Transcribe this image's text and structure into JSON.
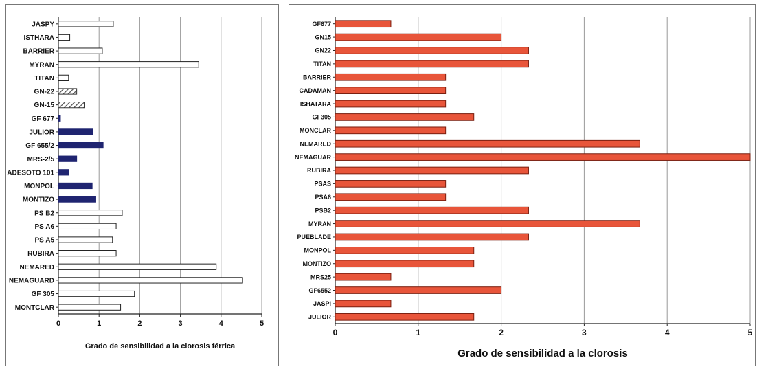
{
  "charts": [
    {
      "id": "left",
      "chart_data": {
        "type": "bar",
        "orientation": "horizontal",
        "categories": [
          "JASPY",
          "ISTHARA",
          "BARRIER",
          "MYRAN",
          "TITAN",
          "GN-22",
          "GN-15",
          "GF 677",
          "JULIOR",
          "GF 655/2",
          "MRS-2/5",
          "ADESOTO 101",
          "MONPOL",
          "MONTIZO",
          "PS B2",
          "PS A6",
          "PS A5",
          "RUBIRA",
          "NEMARED",
          "NEMAGUARD",
          "GF 305",
          "MONTCLAR"
        ],
        "values": [
          1.35,
          0.28,
          1.08,
          3.45,
          0.25,
          0.45,
          0.65,
          0.05,
          0.85,
          1.1,
          0.45,
          0.25,
          0.83,
          0.92,
          1.57,
          1.42,
          1.33,
          1.42,
          3.88,
          4.53,
          1.87,
          1.53
        ],
        "bar_styles": [
          "white",
          "white",
          "white",
          "white",
          "white",
          "hatched",
          "hatched",
          "dark",
          "dark",
          "dark",
          "dark",
          "dark",
          "dark",
          "dark",
          "white",
          "white",
          "white",
          "white",
          "white",
          "white",
          "white",
          "white"
        ],
        "xlabel": "Grado de sensibilidad a la clorosis férrica",
        "xlim": [
          0,
          5
        ],
        "xticks": [
          "0",
          "1",
          "2",
          "3",
          "4",
          "5"
        ],
        "grid": "vertical"
      },
      "colors": {
        "dark": "#1f2470",
        "white": "#ffffff",
        "hatched": "#555555",
        "grid": "#9a9a9a"
      }
    },
    {
      "id": "right",
      "chart_data": {
        "type": "bar",
        "orientation": "horizontal",
        "categories": [
          "GF677",
          "GN15",
          "GN22",
          "TITAN",
          "BARRIER",
          "CADAMAN",
          "ISHATARA",
          "GF305",
          "MONCLAR",
          "NEMARED",
          "NEMAGUAR",
          "RUBIRA",
          "PSAS",
          "PSA6",
          "PSB2",
          "MYRAN",
          "PUEBLADE",
          "MONPOL",
          "MONTIZO",
          "MRS25",
          "GF6552",
          "JASPI",
          "JULIOR"
        ],
        "values": [
          0.67,
          2.0,
          2.33,
          2.33,
          1.33,
          1.33,
          1.33,
          1.67,
          1.33,
          3.67,
          5.0,
          2.33,
          1.33,
          1.33,
          2.33,
          3.67,
          2.33,
          1.67,
          1.67,
          0.67,
          2.0,
          0.67,
          1.67
        ],
        "xlabel": "Grado de sensibilidad a la clorosis",
        "xlim": [
          0,
          5
        ],
        "xticks": [
          "0",
          "1",
          "2",
          "3",
          "4",
          "5"
        ],
        "grid": "vertical"
      },
      "colors": {
        "bar": "#e8553a",
        "bar_edge": "#7a1f10",
        "grid": "#9a9a9a"
      }
    }
  ]
}
